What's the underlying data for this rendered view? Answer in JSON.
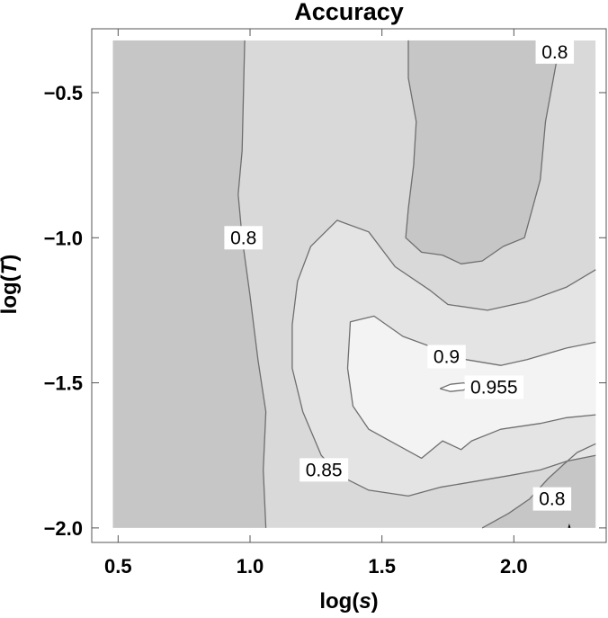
{
  "chart_data": {
    "type": "contour",
    "title": "Accuracy",
    "xlabel_main": "log(",
    "xlabel_var": "s",
    "xlabel_end": ")",
    "ylabel_main": "log(",
    "ylabel_var": "T",
    "ylabel_end": ")",
    "xlim": [
      0.4,
      2.35
    ],
    "ylim": [
      -2.05,
      -0.28
    ],
    "x_ticks": [
      0.5,
      1.0,
      1.5,
      2.0
    ],
    "x_tick_labels": [
      "0.5",
      "1.0",
      "1.5",
      "2.0"
    ],
    "y_ticks": [
      -0.5,
      -1.0,
      -1.5,
      -2.0
    ],
    "y_tick_labels": [
      "−0.5",
      "−1.0",
      "−1.5",
      "−2.0"
    ],
    "data_extent": {
      "x": [
        0.48,
        2.31
      ],
      "y": [
        -2.0,
        -0.32
      ]
    },
    "grid": false,
    "colors": {
      "frame": "#555555",
      "contour_line": "#6f6f6f",
      "below_0.8": "#c6c6c6",
      "0.8_to_0.85": "#d9d9d9",
      "0.85_to_0.9": "#e4e4e4",
      "0.9_to_0.955": "#f3f3f3",
      "above_0.955": "#ffffff",
      "label_box": "#ffffff"
    },
    "levels": [
      0.8,
      0.85,
      0.9,
      0.955
    ],
    "contours": [
      {
        "level": 0.8,
        "side": "left",
        "points": [
          [
            0.98,
            -0.32
          ],
          [
            0.975,
            -0.5
          ],
          [
            0.97,
            -0.7
          ],
          [
            0.955,
            -0.85
          ],
          [
            0.97,
            -1.0
          ],
          [
            1.0,
            -1.2
          ],
          [
            1.03,
            -1.42
          ],
          [
            1.06,
            -1.6
          ],
          [
            1.05,
            -1.8
          ],
          [
            1.06,
            -2.0
          ]
        ]
      },
      {
        "level": 0.8,
        "side": "top-right",
        "points": [
          [
            1.6,
            -0.32
          ],
          [
            1.6,
            -0.45
          ],
          [
            1.63,
            -0.6
          ],
          [
            1.62,
            -0.75
          ],
          [
            1.6,
            -0.9
          ],
          [
            1.59,
            -1.0
          ],
          [
            1.65,
            -1.05
          ],
          [
            1.73,
            -1.06
          ],
          [
            1.8,
            -1.09
          ],
          [
            1.88,
            -1.08
          ],
          [
            1.96,
            -1.03
          ],
          [
            2.04,
            -1.0
          ],
          [
            2.07,
            -0.9
          ],
          [
            2.1,
            -0.8
          ],
          [
            2.12,
            -0.6
          ],
          [
            2.16,
            -0.4
          ],
          [
            2.17,
            -0.32
          ]
        ]
      },
      {
        "level": 0.8,
        "side": "bottom-right",
        "points": [
          [
            1.88,
            -2.0
          ],
          [
            1.98,
            -1.95
          ],
          [
            2.06,
            -1.9
          ],
          [
            2.13,
            -1.83
          ],
          [
            2.19,
            -1.78
          ],
          [
            2.24,
            -1.74
          ],
          [
            2.31,
            -1.71
          ]
        ]
      },
      {
        "level": 0.85,
        "points": [
          [
            2.31,
            -1.11
          ],
          [
            2.2,
            -1.17
          ],
          [
            2.05,
            -1.22
          ],
          [
            1.9,
            -1.25
          ],
          [
            1.75,
            -1.23
          ],
          [
            1.68,
            -1.18
          ],
          [
            1.55,
            -1.1
          ],
          [
            1.45,
            -0.98
          ],
          [
            1.33,
            -0.94
          ],
          [
            1.23,
            -1.03
          ],
          [
            1.18,
            -1.15
          ],
          [
            1.16,
            -1.3
          ],
          [
            1.16,
            -1.45
          ],
          [
            1.2,
            -1.6
          ],
          [
            1.27,
            -1.75
          ],
          [
            1.34,
            -1.82
          ],
          [
            1.45,
            -1.87
          ],
          [
            1.6,
            -1.89
          ],
          [
            1.72,
            -1.86
          ],
          [
            1.85,
            -1.84
          ],
          [
            1.98,
            -1.82
          ],
          [
            2.1,
            -1.8
          ],
          [
            2.2,
            -1.77
          ],
          [
            2.31,
            -1.75
          ]
        ]
      },
      {
        "level": 0.9,
        "points": [
          [
            2.31,
            -1.36
          ],
          [
            2.2,
            -1.38
          ],
          [
            2.05,
            -1.42
          ],
          [
            1.95,
            -1.44
          ],
          [
            1.82,
            -1.42
          ],
          [
            1.7,
            -1.38
          ],
          [
            1.58,
            -1.34
          ],
          [
            1.47,
            -1.27
          ],
          [
            1.38,
            -1.29
          ],
          [
            1.37,
            -1.45
          ],
          [
            1.39,
            -1.58
          ],
          [
            1.45,
            -1.66
          ],
          [
            1.55,
            -1.71
          ],
          [
            1.65,
            -1.76
          ],
          [
            1.73,
            -1.7
          ],
          [
            1.8,
            -1.73
          ],
          [
            1.84,
            -1.7
          ],
          [
            1.95,
            -1.66
          ],
          [
            2.1,
            -1.64
          ],
          [
            2.2,
            -1.62
          ],
          [
            2.31,
            -1.61
          ]
        ]
      },
      {
        "level": 0.955,
        "points": [
          [
            1.72,
            -1.52
          ],
          [
            1.76,
            -1.505
          ],
          [
            1.81,
            -1.5
          ],
          [
            1.83,
            -1.51
          ],
          [
            1.81,
            -1.525
          ],
          [
            1.76,
            -1.53
          ],
          [
            1.72,
            -1.52
          ]
        ]
      },
      {
        "level": 0.8,
        "side": "bottom-right-tip",
        "points": [
          [
            2.205,
            -2.0
          ],
          [
            2.21,
            -1.985
          ],
          [
            2.215,
            -2.0
          ]
        ]
      }
    ],
    "contour_labels": [
      {
        "text": "0.8",
        "x": 0.975,
        "y": -1.0
      },
      {
        "text": "0.8",
        "x": 2.155,
        "y": -0.36
      },
      {
        "text": "0.8",
        "x": 2.145,
        "y": -1.9
      },
      {
        "text": "0.85",
        "x": 1.28,
        "y": -1.8
      },
      {
        "text": "0.9",
        "x": 1.745,
        "y": -1.41
      },
      {
        "text": "0.955",
        "x": 1.925,
        "y": -1.515
      }
    ]
  }
}
